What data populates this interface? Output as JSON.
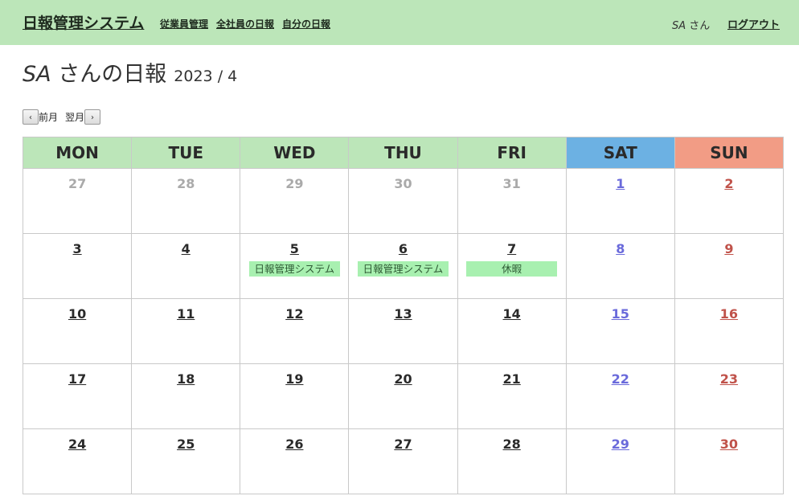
{
  "header": {
    "app_title": "日報管理システム",
    "nav": [
      "従業員管理",
      "全社員の日報",
      "自分の日報"
    ],
    "user_name": "SA",
    "user_suffix": "さん",
    "logout": "ログアウト"
  },
  "page": {
    "title_user": "SA",
    "title_main": " さんの日報",
    "year_month": "2023 / 4"
  },
  "month_nav": {
    "prev_icon": "‹",
    "prev_label": "前月",
    "next_label": "翌月",
    "next_icon": "›"
  },
  "calendar": {
    "weekdays": [
      {
        "label": "MON",
        "kind": "weekday"
      },
      {
        "label": "TUE",
        "kind": "weekday"
      },
      {
        "label": "WED",
        "kind": "weekday"
      },
      {
        "label": "THU",
        "kind": "weekday"
      },
      {
        "label": "FRI",
        "kind": "weekday"
      },
      {
        "label": "SAT",
        "kind": "sat"
      },
      {
        "label": "SUN",
        "kind": "sun"
      }
    ],
    "weeks": [
      [
        {
          "day": "27",
          "kind": "out"
        },
        {
          "day": "28",
          "kind": "out"
        },
        {
          "day": "29",
          "kind": "out"
        },
        {
          "day": "30",
          "kind": "out"
        },
        {
          "day": "31",
          "kind": "out"
        },
        {
          "day": "1",
          "kind": "sat"
        },
        {
          "day": "2",
          "kind": "sun"
        }
      ],
      [
        {
          "day": "3",
          "kind": "weekday"
        },
        {
          "day": "4",
          "kind": "weekday"
        },
        {
          "day": "5",
          "kind": "weekday",
          "entry": "日報管理システム"
        },
        {
          "day": "6",
          "kind": "weekday",
          "entry": "日報管理システム"
        },
        {
          "day": "7",
          "kind": "weekday",
          "entry": "休暇"
        },
        {
          "day": "8",
          "kind": "sat"
        },
        {
          "day": "9",
          "kind": "sun"
        }
      ],
      [
        {
          "day": "10",
          "kind": "weekday"
        },
        {
          "day": "11",
          "kind": "weekday"
        },
        {
          "day": "12",
          "kind": "weekday"
        },
        {
          "day": "13",
          "kind": "weekday"
        },
        {
          "day": "14",
          "kind": "weekday"
        },
        {
          "day": "15",
          "kind": "sat"
        },
        {
          "day": "16",
          "kind": "sun"
        }
      ],
      [
        {
          "day": "17",
          "kind": "weekday"
        },
        {
          "day": "18",
          "kind": "weekday"
        },
        {
          "day": "19",
          "kind": "weekday"
        },
        {
          "day": "20",
          "kind": "weekday"
        },
        {
          "day": "21",
          "kind": "weekday"
        },
        {
          "day": "22",
          "kind": "sat"
        },
        {
          "day": "23",
          "kind": "sun"
        }
      ],
      [
        {
          "day": "24",
          "kind": "weekday"
        },
        {
          "day": "25",
          "kind": "weekday"
        },
        {
          "day": "26",
          "kind": "weekday"
        },
        {
          "day": "27",
          "kind": "weekday"
        },
        {
          "day": "28",
          "kind": "weekday"
        },
        {
          "day": "29",
          "kind": "sat"
        },
        {
          "day": "30",
          "kind": "sun"
        }
      ]
    ]
  }
}
